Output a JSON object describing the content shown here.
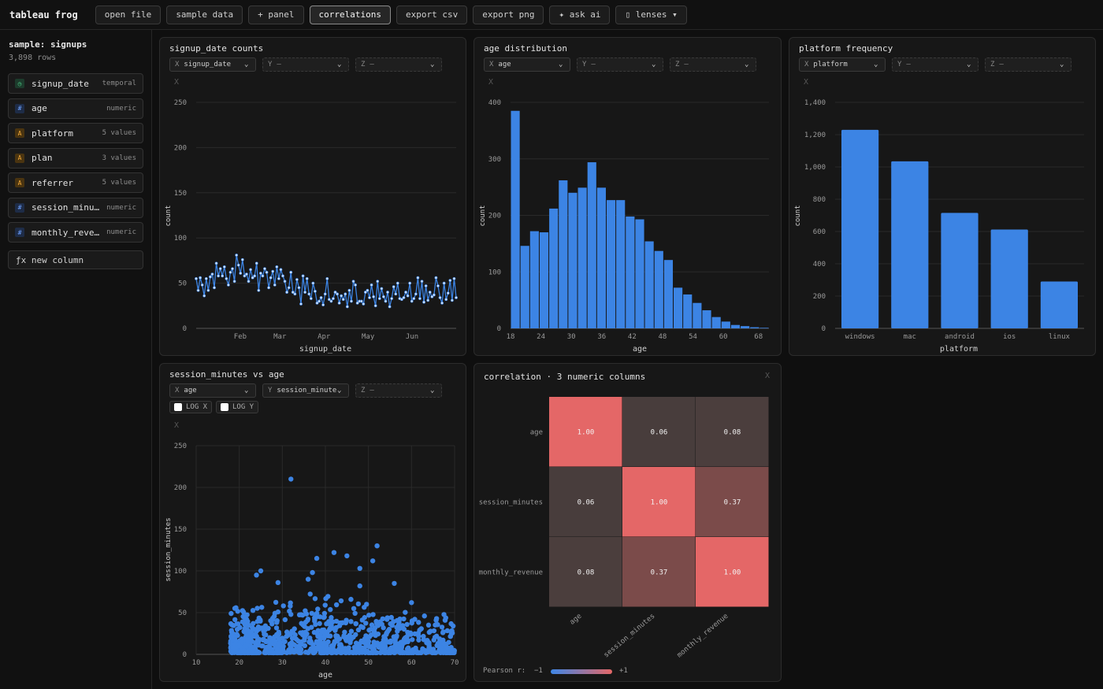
{
  "app": {
    "brand": "tableau frog",
    "toolbar": [
      {
        "id": "open_file",
        "label": "open file"
      },
      {
        "id": "sample_data",
        "label": "sample data"
      },
      {
        "id": "add_panel",
        "label": "+ panel"
      },
      {
        "id": "correlations",
        "label": "correlations",
        "active": true
      },
      {
        "id": "export_csv",
        "label": "export csv"
      },
      {
        "id": "export_png",
        "label": "export png"
      },
      {
        "id": "ask_ai",
        "label": "✦ ask ai"
      },
      {
        "id": "lenses",
        "label": "▯ lenses ▾"
      }
    ]
  },
  "sidebar": {
    "title": "sample: signups",
    "rows": "3,898 rows",
    "columns": [
      {
        "name": "signup_date",
        "kind": "temporal",
        "icon": "◷",
        "icon_class": "t"
      },
      {
        "name": "age",
        "kind": "numeric",
        "icon": "#",
        "icon_class": "n"
      },
      {
        "name": "platform",
        "kind": "5 values",
        "icon": "A",
        "icon_class": "c"
      },
      {
        "name": "plan",
        "kind": "3 values",
        "icon": "A",
        "icon_class": "c"
      },
      {
        "name": "referrer",
        "kind": "5 values",
        "icon": "A",
        "icon_class": "c"
      },
      {
        "name": "session_minut…",
        "kind": "numeric",
        "icon": "#",
        "icon_class": "n"
      },
      {
        "name": "monthly_reven…",
        "kind": "numeric",
        "icon": "#",
        "icon_class": "n"
      }
    ],
    "new_column": "ƒx new column"
  },
  "panels": {
    "p1": {
      "title": "signup_date counts",
      "x": "signup_date",
      "y": "—",
      "z": "—",
      "close": "X"
    },
    "p2": {
      "title": "age distribution",
      "x": "age",
      "y": "—",
      "z": "—",
      "close": "X"
    },
    "p3": {
      "title": "platform frequency",
      "x": "platform",
      "y": "—",
      "z": "—",
      "close": "X"
    },
    "p4": {
      "title": "session_minutes vs age",
      "x": "age",
      "y": "session_minutes",
      "z": "—",
      "close": "X",
      "log_x": "LOG X",
      "log_y": "LOG Y"
    },
    "p5": {
      "title": "correlation · 3 numeric columns",
      "close": "X",
      "legend_label": "Pearson r:",
      "legend_min": "−1",
      "legend_max": "+1"
    }
  },
  "axis_letters": {
    "x": "X",
    "y": "Y",
    "z": "Z"
  },
  "chart_data": [
    {
      "type": "line",
      "xlabel": "signup_date",
      "ylabel": "count",
      "ylim": [
        0,
        250
      ],
      "yticks": [
        0,
        50,
        100,
        150,
        200,
        250
      ],
      "xtick_labels": [
        "Feb",
        "Mar",
        "Apr",
        "May",
        "Jun"
      ],
      "xtick_index": [
        10,
        19,
        29,
        39,
        49
      ],
      "values": [
        55,
        42,
        56,
        48,
        36,
        55,
        42,
        57,
        60,
        45,
        72,
        58,
        66,
        58,
        68,
        55,
        48,
        62,
        66,
        52,
        81,
        70,
        61,
        76,
        58,
        60,
        52,
        65,
        56,
        58,
        72,
        42,
        61,
        58,
        66,
        62,
        45,
        56,
        63,
        48,
        68,
        55,
        65,
        58,
        52,
        40,
        45,
        62,
        40,
        38,
        54,
        45,
        27,
        58,
        40,
        55,
        38,
        33,
        50,
        41,
        28,
        30,
        34,
        26,
        38,
        55,
        32,
        30,
        33,
        40,
        38,
        28,
        36,
        32,
        38,
        24,
        42,
        30,
        52,
        48,
        28,
        30,
        30,
        27,
        40,
        42,
        34,
        48,
        35,
        25,
        52,
        33,
        44,
        35,
        30,
        40,
        24,
        33,
        46,
        38,
        50,
        33,
        32,
        34,
        40,
        36,
        50,
        30,
        33,
        38,
        56,
        33,
        52,
        29,
        47,
        31,
        40,
        35,
        37,
        56,
        47,
        34,
        28,
        50,
        32,
        39,
        53,
        31,
        55,
        34
      ]
    },
    {
      "type": "bar",
      "xlabel": "age",
      "ylabel": "count",
      "ylim": [
        0,
        400
      ],
      "yticks": [
        0,
        100,
        200,
        300,
        400
      ],
      "xticks": [
        18,
        24,
        30,
        36,
        42,
        48,
        54,
        60,
        66
      ],
      "xlim": [
        18,
        69
      ],
      "bin_width": 2,
      "values": [
        385,
        146,
        172,
        170,
        212,
        262,
        240,
        249,
        294,
        249,
        227,
        227,
        198,
        193,
        154,
        137,
        121,
        72,
        60,
        45,
        32,
        20,
        12,
        6,
        4,
        2,
        1
      ]
    },
    {
      "type": "bar",
      "xlabel": "platform",
      "ylabel": "count",
      "ylim": [
        0,
        1400
      ],
      "yticks": [
        0,
        200,
        400,
        600,
        800,
        1000,
        1200,
        1400
      ],
      "ytick_labels": [
        "0",
        "200",
        "400",
        "600",
        "800",
        "1,000",
        "1,200",
        "1,400"
      ],
      "categories": [
        "windows",
        "mac",
        "android",
        "ios",
        "linux"
      ],
      "values": [
        1230,
        1035,
        715,
        612,
        290
      ]
    },
    {
      "type": "scatter",
      "xlabel": "age",
      "ylabel": "session_minutes",
      "xlim": [
        10,
        70
      ],
      "ylim": [
        0,
        250
      ],
      "xticks": [
        10,
        20,
        30,
        40,
        50,
        60,
        70
      ],
      "yticks": [
        0,
        50,
        100,
        150,
        200,
        250
      ],
      "outliers": [
        [
          24,
          95
        ],
        [
          25,
          100
        ],
        [
          32,
          210
        ],
        [
          38,
          115
        ],
        [
          42,
          122
        ],
        [
          45,
          118
        ],
        [
          52,
          130
        ],
        [
          51,
          112
        ],
        [
          37,
          98
        ],
        [
          48,
          103
        ],
        [
          56,
          85
        ],
        [
          60,
          62
        ],
        [
          63,
          46
        ],
        [
          48,
          82
        ],
        [
          36,
          90
        ],
        [
          29,
          86
        ]
      ]
    },
    {
      "type": "heatmap",
      "rows": [
        "age",
        "session_minutes",
        "monthly_revenue"
      ],
      "cols": [
        "age",
        "session_minutes",
        "monthly_revenue"
      ],
      "values": [
        [
          1.0,
          0.06,
          0.08
        ],
        [
          0.06,
          1.0,
          0.37
        ],
        [
          0.08,
          0.37,
          1.0
        ]
      ],
      "labels": [
        [
          "1.00",
          "0.06",
          "0.08"
        ],
        [
          "0.06",
          "1.00",
          "0.37"
        ],
        [
          "0.08",
          "0.37",
          "1.00"
        ]
      ],
      "colors": {
        "neutral": "#3e3a39",
        "positive": "#e46767",
        "negative": "#3e86e6"
      }
    }
  ],
  "colors": {
    "accent": "#3c84e4",
    "grid": "#2a2a2a",
    "axis": "#555555",
    "tick_text": "#9a9a9a"
  }
}
